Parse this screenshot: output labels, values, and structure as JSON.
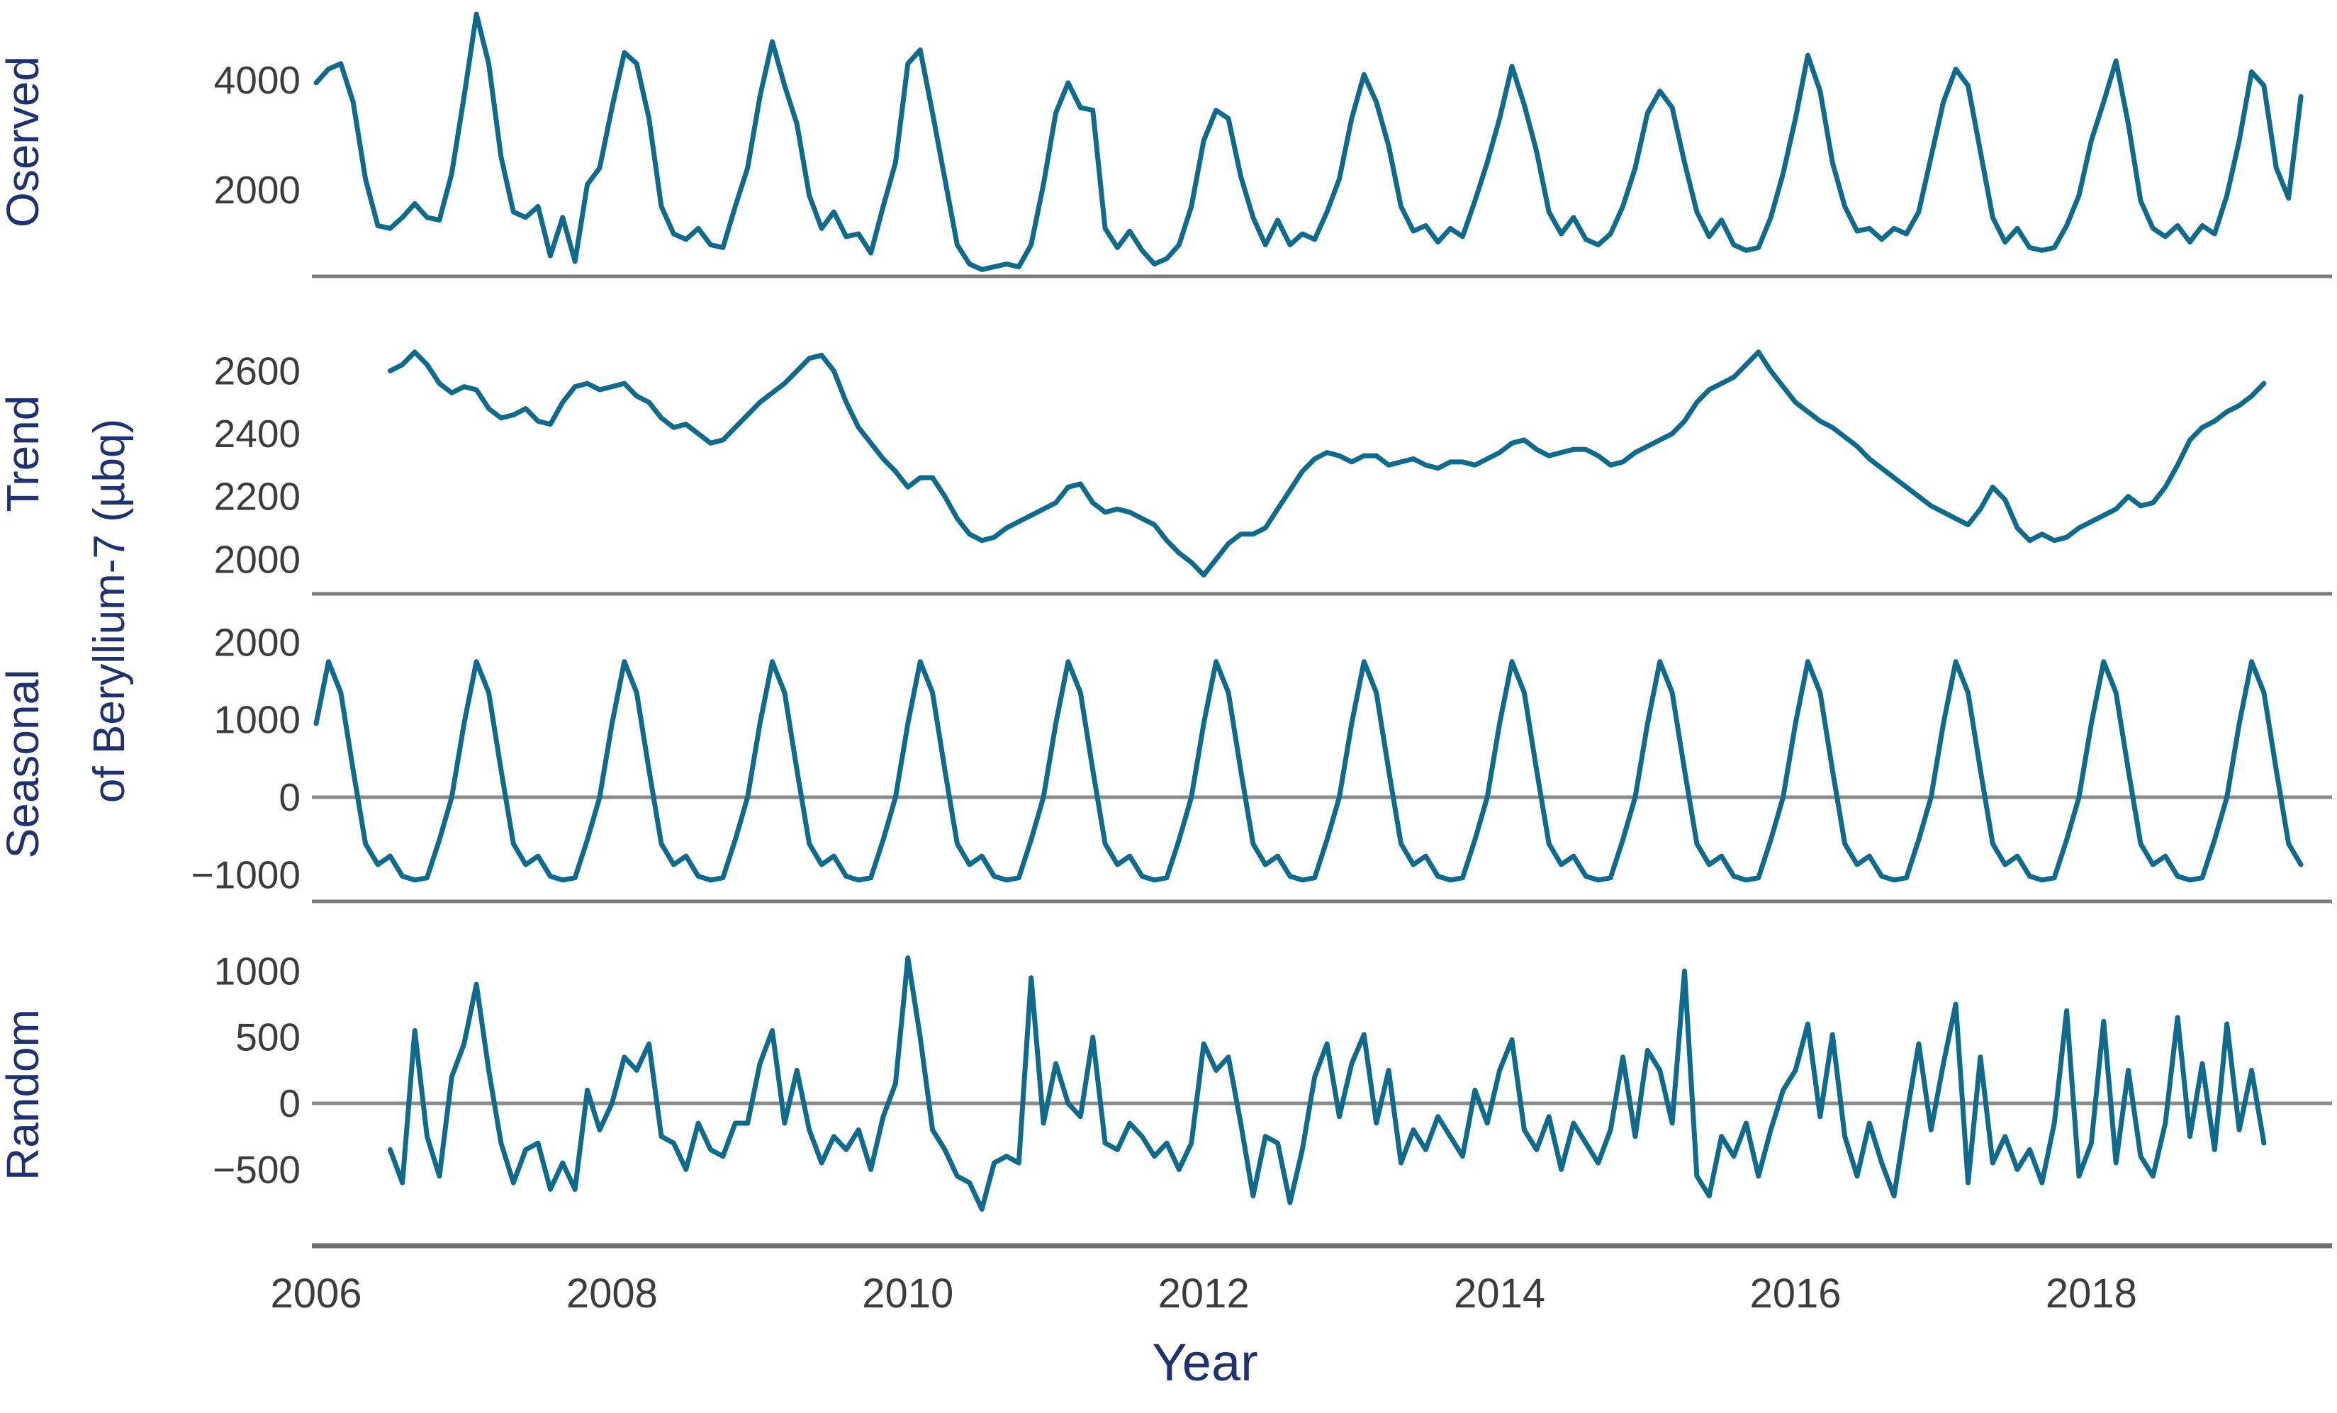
{
  "figure": {
    "background": "#ffffff",
    "line_color": "#0f6a8b",
    "label_color": "#203170",
    "tick_color": "#3c3c3c",
    "axis_color": "#7a7a7a"
  },
  "chart_data": {
    "type": "line",
    "title": "",
    "xlabel": "Year",
    "shared_ylabel": "of Beryllium-7 (µbq)",
    "x_unit": "year, monthly samples",
    "x_start": 2006.0,
    "x_step": 0.08333,
    "n_points": 162,
    "xlim": [
      2005.97,
      2019.6
    ],
    "grid": false,
    "legend": "none",
    "xticks": [
      {
        "value": 2006,
        "label": "2006"
      },
      {
        "value": 2008,
        "label": "2008"
      },
      {
        "value": 2010,
        "label": "2010"
      },
      {
        "value": 2012,
        "label": "2012"
      },
      {
        "value": 2014,
        "label": "2014"
      },
      {
        "value": 2016,
        "label": "2016"
      },
      {
        "value": 2018,
        "label": "2018"
      }
    ],
    "panels": [
      {
        "key": "observed",
        "name": "Oserved",
        "ylim": [
          426,
          5329
        ],
        "zero_line": false,
        "yticks": [
          {
            "value": 4000,
            "label": "4000"
          },
          {
            "value": 2000,
            "label": "2000"
          }
        ],
        "values": [
          3950,
          4200,
          4300,
          3600,
          2200,
          1350,
          1300,
          1500,
          1750,
          1500,
          1450,
          2300,
          3700,
          5200,
          4300,
          2600,
          1600,
          1500,
          1700,
          800,
          1500,
          700,
          2100,
          2400,
          3500,
          4500,
          4300,
          3300,
          1700,
          1200,
          1100,
          1300,
          1000,
          950,
          1700,
          2400,
          3700,
          4700,
          3900,
          3200,
          1900,
          1300,
          1600,
          1150,
          1200,
          850,
          1700,
          2500,
          4300,
          4550,
          3400,
          2200,
          1000,
          650,
          550,
          600,
          650,
          600,
          1000,
          2100,
          3400,
          3950,
          3500,
          3450,
          1300,
          950,
          1250,
          900,
          650,
          750,
          1000,
          1700,
          2900,
          3450,
          3300,
          2250,
          1500,
          1000,
          1450,
          1000,
          1200,
          1100,
          1600,
          2200,
          3300,
          4100,
          3600,
          2800,
          1700,
          1250,
          1350,
          1050,
          1300,
          1150,
          1800,
          2500,
          3300,
          4250,
          3550,
          2700,
          1600,
          1200,
          1500,
          1100,
          1000,
          1200,
          1700,
          2400,
          3400,
          3800,
          3500,
          2500,
          1600,
          1150,
          1450,
          1000,
          900,
          950,
          1500,
          2300,
          3300,
          4450,
          3800,
          2500,
          1700,
          1250,
          1300,
          1100,
          1300,
          1200,
          1600,
          2600,
          3600,
          4200,
          3900,
          2700,
          1500,
          1050,
          1300,
          950,
          900,
          950,
          1350,
          1900,
          2900,
          3600,
          4350,
          3200,
          1800,
          1300,
          1150,
          1350,
          1050,
          1350,
          1200,
          1900,
          2900,
          4150,
          3900,
          2400,
          1850,
          3700
        ]
      },
      {
        "key": "trend",
        "name": "Trend",
        "ylim": [
          1890,
          2777
        ],
        "zero_line": false,
        "yticks": [
          {
            "value": 2600,
            "label": "2600"
          },
          {
            "value": 2400,
            "label": "2400"
          },
          {
            "value": 2200,
            "label": "2200"
          },
          {
            "value": 2000,
            "label": "2000"
          }
        ],
        "values": [
          null,
          null,
          null,
          null,
          null,
          null,
          2600,
          2620,
          2660,
          2620,
          2560,
          2530,
          2550,
          2540,
          2480,
          2450,
          2460,
          2480,
          2440,
          2430,
          2500,
          2550,
          2560,
          2540,
          2550,
          2560,
          2520,
          2500,
          2450,
          2420,
          2430,
          2400,
          2370,
          2380,
          2420,
          2460,
          2500,
          2530,
          2560,
          2600,
          2640,
          2650,
          2600,
          2500,
          2420,
          2370,
          2320,
          2280,
          2230,
          2260,
          2260,
          2200,
          2130,
          2080,
          2060,
          2070,
          2100,
          2120,
          2140,
          2160,
          2180,
          2230,
          2240,
          2180,
          2150,
          2160,
          2150,
          2130,
          2110,
          2060,
          2020,
          1990,
          1950,
          2000,
          2050,
          2080,
          2080,
          2100,
          2160,
          2220,
          2280,
          2320,
          2340,
          2330,
          2310,
          2330,
          2330,
          2300,
          2310,
          2320,
          2300,
          2290,
          2310,
          2310,
          2300,
          2320,
          2340,
          2370,
          2380,
          2350,
          2330,
          2340,
          2350,
          2350,
          2330,
          2300,
          2310,
          2340,
          2360,
          2380,
          2400,
          2440,
          2500,
          2540,
          2560,
          2580,
          2620,
          2660,
          2600,
          2550,
          2500,
          2470,
          2440,
          2420,
          2390,
          2360,
          2320,
          2290,
          2260,
          2230,
          2200,
          2170,
          2150,
          2130,
          2110,
          2160,
          2230,
          2190,
          2100,
          2060,
          2080,
          2060,
          2070,
          2100,
          2120,
          2140,
          2160,
          2200,
          2170,
          2180,
          2230,
          2300,
          2380,
          2420,
          2440,
          2470,
          2490,
          2520,
          2560,
          null,
          null,
          null
        ]
      },
      {
        "key": "seasonal",
        "name": "Seasonal",
        "ylim": [
          -1345,
          2241
        ],
        "zero_line": true,
        "yticks": [
          {
            "value": 2000,
            "label": "2000"
          },
          {
            "value": 1000,
            "label": "1000"
          },
          {
            "value": 0,
            "label": "0"
          },
          {
            "value": -1000,
            "label": "−1000"
          }
        ],
        "values": [
          950,
          1750,
          1350,
          350,
          -600,
          -870,
          -760,
          -1020,
          -1070,
          -1040,
          -550,
          0,
          950,
          1750,
          1350,
          350,
          -600,
          -870,
          -760,
          -1020,
          -1070,
          -1040,
          -550,
          0,
          950,
          1750,
          1350,
          350,
          -600,
          -870,
          -760,
          -1020,
          -1070,
          -1040,
          -550,
          0,
          950,
          1750,
          1350,
          350,
          -600,
          -870,
          -760,
          -1020,
          -1070,
          -1040,
          -550,
          0,
          950,
          1750,
          1350,
          350,
          -600,
          -870,
          -760,
          -1020,
          -1070,
          -1040,
          -550,
          0,
          950,
          1750,
          1350,
          350,
          -600,
          -870,
          -760,
          -1020,
          -1070,
          -1040,
          -550,
          0,
          950,
          1750,
          1350,
          350,
          -600,
          -870,
          -760,
          -1020,
          -1070,
          -1040,
          -550,
          0,
          950,
          1750,
          1350,
          350,
          -600,
          -870,
          -760,
          -1020,
          -1070,
          -1040,
          -550,
          0,
          950,
          1750,
          1350,
          350,
          -600,
          -870,
          -760,
          -1020,
          -1070,
          -1040,
          -550,
          0,
          950,
          1750,
          1350,
          350,
          -600,
          -870,
          -760,
          -1020,
          -1070,
          -1040,
          -550,
          0,
          950,
          1750,
          1350,
          350,
          -600,
          -870,
          -760,
          -1020,
          -1070,
          -1040,
          -550,
          0,
          950,
          1750,
          1350,
          350,
          -600,
          -870,
          -760,
          -1020,
          -1070,
          -1040,
          -550,
          0,
          950,
          1750,
          1350,
          350,
          -600,
          -870,
          -760,
          -1020,
          -1070,
          -1040,
          -550,
          0,
          950,
          1750,
          1350,
          350,
          -600,
          -870
        ]
      },
      {
        "key": "random",
        "name": "Random",
        "ylim": [
          -1087,
          1216
        ],
        "zero_line": true,
        "yticks": [
          {
            "value": 1000,
            "label": "1000"
          },
          {
            "value": 500,
            "label": "500"
          },
          {
            "value": 0,
            "label": "0"
          },
          {
            "value": -500,
            "label": "−500"
          }
        ],
        "values": [
          null,
          null,
          null,
          null,
          null,
          null,
          -350,
          -600,
          550,
          -250,
          -550,
          200,
          450,
          900,
          250,
          -300,
          -600,
          -350,
          -300,
          -650,
          -450,
          -650,
          100,
          -200,
          0,
          350,
          250,
          450,
          -250,
          -300,
          -500,
          -150,
          -350,
          -400,
          -150,
          -150,
          300,
          550,
          -150,
          250,
          -200,
          -450,
          -250,
          -350,
          -200,
          -500,
          -100,
          150,
          1100,
          500,
          -200,
          -350,
          -550,
          -600,
          -800,
          -450,
          -400,
          -450,
          950,
          -150,
          300,
          0,
          -100,
          500,
          -300,
          -350,
          -150,
          -250,
          -400,
          -300,
          -500,
          -300,
          450,
          250,
          350,
          -150,
          -700,
          -250,
          -300,
          -750,
          -350,
          200,
          450,
          -100,
          300,
          520,
          -150,
          250,
          -450,
          -200,
          -350,
          -100,
          -250,
          -400,
          100,
          -150,
          250,
          480,
          -200,
          -350,
          -100,
          -500,
          -150,
          -300,
          -450,
          -200,
          350,
          -250,
          400,
          250,
          -150,
          1000,
          -550,
          -700,
          -250,
          -400,
          -150,
          -550,
          -200,
          100,
          250,
          600,
          -100,
          520,
          -250,
          -550,
          -150,
          -450,
          -700,
          -100,
          450,
          -200,
          300,
          750,
          -600,
          350,
          -450,
          -250,
          -500,
          -350,
          -600,
          -150,
          700,
          -550,
          -300,
          620,
          -450,
          250,
          -400,
          -550,
          -150,
          650,
          -250,
          300,
          -350,
          600,
          -200,
          250,
          -300,
          null,
          null,
          null
        ]
      }
    ]
  }
}
